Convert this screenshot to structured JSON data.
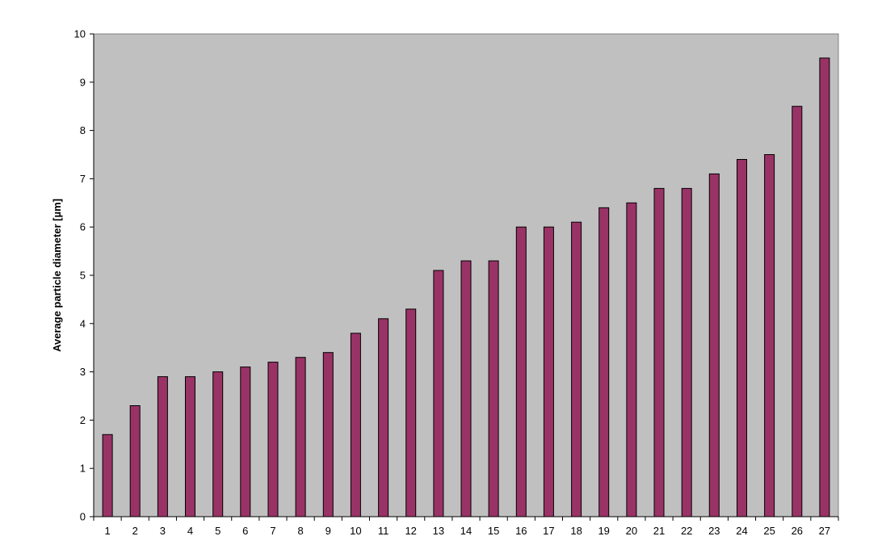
{
  "chart_data": {
    "type": "bar",
    "title": "",
    "xlabel": "",
    "ylabel": "Average particle diameter [µm]",
    "categories": [
      "1",
      "2",
      "3",
      "4",
      "5",
      "6",
      "7",
      "8",
      "9",
      "10",
      "11",
      "12",
      "13",
      "14",
      "15",
      "16",
      "17",
      "18",
      "19",
      "20",
      "21",
      "22",
      "23",
      "24",
      "25",
      "26",
      "27"
    ],
    "values": [
      1.7,
      2.3,
      2.9,
      2.9,
      3.0,
      3.1,
      3.2,
      3.3,
      3.4,
      3.8,
      4.1,
      4.3,
      5.1,
      5.3,
      5.3,
      6.0,
      6.0,
      6.1,
      6.4,
      6.5,
      6.8,
      6.8,
      7.1,
      7.4,
      7.5,
      8.5,
      9.5
    ],
    "ylim": [
      0,
      10
    ],
    "yticks": [
      "0",
      "1",
      "2",
      "3",
      "4",
      "5",
      "6",
      "7",
      "8",
      "9",
      "10"
    ],
    "grid": false,
    "legend": "none",
    "colors": {
      "bar_fill": "#993366",
      "bar_stroke": "#000000",
      "plot_background": "#c0c0c0",
      "axis": "#000000"
    }
  }
}
